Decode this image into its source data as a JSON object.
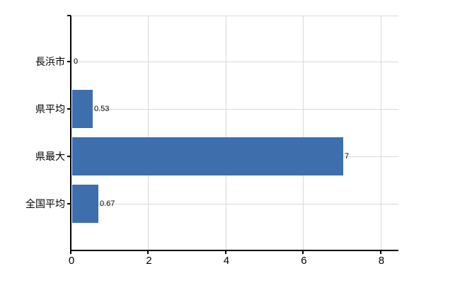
{
  "chart_data": {
    "type": "bar",
    "orientation": "horizontal",
    "title": "",
    "categories": [
      "長浜市",
      "県平均",
      "県最大",
      "全国平均"
    ],
    "values": [
      0,
      0.53,
      7,
      0.67
    ],
    "value_labels": [
      "0",
      "0.53",
      "7",
      "0.67"
    ],
    "xticks": [
      0,
      2,
      4,
      6,
      8
    ],
    "xtick_labels": [
      "0",
      "2",
      "4",
      "6",
      "8"
    ],
    "xlim": [
      0,
      8.44
    ],
    "grid": true,
    "legend": false,
    "bar_color": "#3e6fac",
    "gridline_color": "#d9d9d9",
    "axis_color": "#000000",
    "text_color": "#000000",
    "background_color": "#ffffff"
  }
}
